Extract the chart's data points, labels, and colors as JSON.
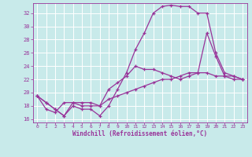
{
  "background_color": "#c8eaea",
  "grid_color": "#b8d8d8",
  "line_color": "#993399",
  "marker": "+",
  "xlabel": "Windchill (Refroidissement éolien,°C)",
  "xlabel_color": "#993399",
  "xlim": [
    -0.5,
    23.5
  ],
  "ylim": [
    15.5,
    33.5
  ],
  "yticks": [
    16,
    18,
    20,
    22,
    24,
    26,
    28,
    30,
    32
  ],
  "xticks": [
    0,
    1,
    2,
    3,
    4,
    5,
    6,
    7,
    8,
    9,
    10,
    11,
    12,
    13,
    14,
    15,
    16,
    17,
    18,
    19,
    20,
    21,
    22,
    23
  ],
  "series": [
    [
      19.5,
      18.5,
      17.5,
      16.5,
      18.0,
      17.5,
      17.5,
      16.5,
      18.0,
      20.5,
      23.0,
      26.5,
      29.0,
      32.0,
      33.0,
      33.2,
      33.0,
      33.0,
      32.0,
      32.0,
      26.0,
      23.0,
      22.5,
      22.0
    ],
    [
      19.5,
      18.5,
      17.5,
      16.5,
      18.5,
      18.0,
      18.0,
      18.0,
      20.5,
      21.5,
      22.5,
      24.0,
      23.5,
      23.5,
      23.0,
      22.5,
      22.0,
      22.5,
      23.0,
      29.0,
      25.5,
      22.5,
      22.5,
      22.0
    ],
    [
      19.5,
      17.5,
      17.0,
      18.5,
      18.5,
      18.5,
      18.5,
      18.0,
      19.0,
      19.5,
      20.0,
      20.5,
      21.0,
      21.5,
      22.0,
      22.0,
      22.5,
      23.0,
      23.0,
      23.0,
      22.5,
      22.5,
      22.0,
      22.0
    ]
  ]
}
